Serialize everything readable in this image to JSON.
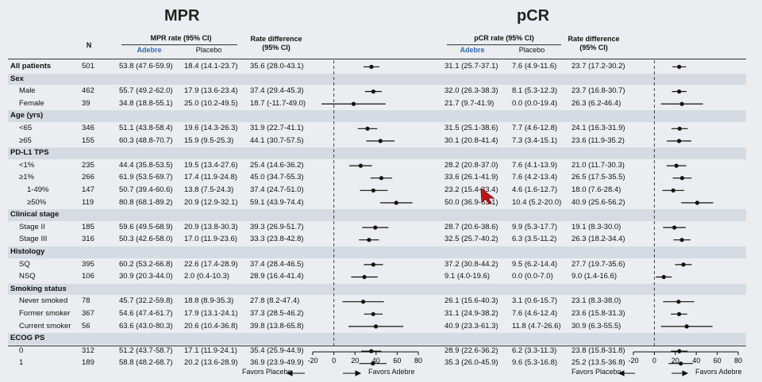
{
  "panels": {
    "left": {
      "title": "MPR",
      "rate_header": "MPR rate (95% CI)",
      "arm1": "Adebre",
      "arm2": "Placebo",
      "diff_header_1": "Rate difference",
      "diff_header_2": "(95% CI)"
    },
    "right": {
      "title": "pCR",
      "rate_header": "pCR rate (95% CI)",
      "arm1": "Adebre",
      "arm2": "Placebo",
      "diff_header_1": "Rate difference",
      "diff_header_2": "(95% CI)"
    }
  },
  "n_header": "N",
  "axis_favors_left": "Favors Placebo",
  "axis_favors_right": "Favors Adebre",
  "colors": {
    "accent": "#2f6db5",
    "band": "#d6dae2",
    "cursor": "#c0151c"
  },
  "rows": [
    {
      "label": "All patients",
      "kind": "main",
      "n": "501",
      "mpr_a": "53.8 (47.6-59.9)",
      "mpr_p": "18.4 (14.1-23.7)",
      "mpr_d": "35.6 (28.0-43.1)",
      "pcr_a": "31.1 (25.7-37.1)",
      "pcr_p": "7.6 (4.9-11.6)",
      "pcr_d": "23.7 (17.2-30.2)"
    },
    {
      "label": "Sex",
      "kind": "group"
    },
    {
      "label": "Male",
      "kind": "sub",
      "n": "462",
      "mpr_a": "55.7 (49.2-62.0)",
      "mpr_p": "17.9 (13.6-23.4)",
      "mpr_d": "37.4 (29.4-45.3)",
      "pcr_a": "32.0 (26.3-38.3)",
      "pcr_p": "8.1 (5.3-12.3)",
      "pcr_d": "23.7 (16.8-30.7)"
    },
    {
      "label": "Female",
      "kind": "sub",
      "n": "39",
      "mpr_a": "34.8 (18.8-55.1)",
      "mpr_p": "25.0 (10.2-49.5)",
      "mpr_d": "18.7 (-11.7-49.0)",
      "pcr_a": "21.7 (9.7-41.9)",
      "pcr_p": "0.0 (0.0-19.4)",
      "pcr_d": "26.3 (6.2-46.4)"
    },
    {
      "label": "Age (yrs)",
      "kind": "group"
    },
    {
      "label": "<65",
      "kind": "sub",
      "n": "346",
      "mpr_a": "51.1 (43.8-58.4)",
      "mpr_p": "19.6 (14.3-26.3)",
      "mpr_d": "31.9 (22.7-41.1)",
      "pcr_a": "31.5 (25.1-38.6)",
      "pcr_p": "7.7 (4.6-12.8)",
      "pcr_d": "24.1 (16.3-31.9)"
    },
    {
      "label": "≥65",
      "kind": "sub",
      "n": "155",
      "mpr_a": "60.3 (48.8-70.7)",
      "mpr_p": "15.9 (9.5-25.3)",
      "mpr_d": "44.1 (30.7-57.5)",
      "pcr_a": "30.1 (20.8-41.4)",
      "pcr_p": "7.3 (3.4-15.1)",
      "pcr_d": "23.6 (11.9-35.2)"
    },
    {
      "label": "PD-L1 TPS",
      "kind": "group"
    },
    {
      "label": "<1%",
      "kind": "sub",
      "n": "235",
      "mpr_a": "44.4 (35.8-53.5)",
      "mpr_p": "19.5 (13.4-27.6)",
      "mpr_d": "25.4 (14.6-36.2)",
      "pcr_a": "28.2 (20.8-37.0)",
      "pcr_p": "7.6 (4.1-13.9)",
      "pcr_d": "21.0 (11.7-30.3)"
    },
    {
      "label": "≥1%",
      "kind": "sub",
      "n": "266",
      "mpr_a": "61.9 (53.5-69.7)",
      "mpr_p": "17.4 (11.9-24.8)",
      "mpr_d": "45.0 (34.7-55.3)",
      "pcr_a": "33.6 (26.1-41.9)",
      "pcr_p": "7.6 (4.2-13.4)",
      "pcr_d": "26.5 (17.5-35.5)"
    },
    {
      "label": "1-49%",
      "kind": "sub2",
      "n": "147",
      "mpr_a": "50.7 (39.4-60.6)",
      "mpr_p": "13.8 (7.5-24.3)",
      "mpr_d": "37.4 (24.7-51.0)",
      "pcr_a": "23.2 (15.4-33.4)",
      "pcr_p": "4.6 (1.6-12.7)",
      "pcr_d": "18.0 (7.6-28.4)"
    },
    {
      "label": "≥50%",
      "kind": "sub2",
      "n": "119",
      "mpr_a": "80.8 (68.1-89.2)",
      "mpr_p": "20.9 (12.9-32.1)",
      "mpr_d": "59.1 (43.9-74.4)",
      "pcr_a": "50.0 (36.9-63.1)",
      "pcr_p": "10.4 (5.2-20.0)",
      "pcr_d": "40.9 (25.6-56.2)"
    },
    {
      "label": "Clinical stage",
      "kind": "group"
    },
    {
      "label": "Stage II",
      "kind": "sub",
      "n": "185",
      "mpr_a": "59.6 (49.5-68.9)",
      "mpr_p": "20.9 (13.8-30.3)",
      "mpr_d": "39.3 (26.9-51.7)",
      "pcr_a": "28.7 (20.6-38.6)",
      "pcr_p": "9.9 (5.3-17.7)",
      "pcr_d": "19.1 (8.3-30.0)"
    },
    {
      "label": "Stage III",
      "kind": "sub",
      "n": "316",
      "mpr_a": "50.3 (42.6-58.0)",
      "mpr_p": "17.0 (11.9-23.6)",
      "mpr_d": "33.3 (23.8-42.8)",
      "pcr_a": "32.5 (25.7-40.2)",
      "pcr_p": "6.3 (3.5-11.2)",
      "pcr_d": "26.3 (18.2-34.4)"
    },
    {
      "label": "Histology",
      "kind": "group"
    },
    {
      "label": "SQ",
      "kind": "sub",
      "n": "395",
      "mpr_a": "60.2 (53.2-66.8)",
      "mpr_p": "22.6 (17.4-28.9)",
      "mpr_d": "37.4 (28.4-46.5)",
      "pcr_a": "37.2 (30.8-44.2)",
      "pcr_p": "9.5 (6.2-14.4)",
      "pcr_d": "27.7 (19.7-35.6)"
    },
    {
      "label": "NSQ",
      "kind": "sub",
      "n": "106",
      "mpr_a": "30.9 (20.3-44.0)",
      "mpr_p": "2.0 (0.4-10.3)",
      "mpr_d": "28.9 (16.4-41.4)",
      "pcr_a": "9.1 (4.0-19.6)",
      "pcr_p": "0.0 (0.0-7.0)",
      "pcr_d": "9.0 (1.4-16.6)"
    },
    {
      "label": "Smoking status",
      "kind": "group"
    },
    {
      "label": "Never smoked",
      "kind": "sub",
      "n": "78",
      "mpr_a": "45.7 (32.2-59.8)",
      "mpr_p": "18.8 (8.9-35.3)",
      "mpr_d": "27.8 (8.2-47.4)",
      "pcr_a": "26.1 (15.6-40.3)",
      "pcr_p": "3.1 (0.6-15.7)",
      "pcr_d": "23.1 (8.3-38.0)"
    },
    {
      "label": "Former smoker",
      "kind": "sub",
      "n": "367",
      "mpr_a": "54.6 (47.4-61.7)",
      "mpr_p": "17.9 (13.1-24.1)",
      "mpr_d": "37.3 (28.5-46.2)",
      "pcr_a": "31.1 (24.9-38.2)",
      "pcr_p": "7.6 (4.6-12.4)",
      "pcr_d": "23.6 (15.8-31.3)"
    },
    {
      "label": "Current smoker",
      "kind": "sub",
      "n": "56",
      "mpr_a": "63.6 (43.0-80.3)",
      "mpr_p": "20.6 (10.4-36.8)",
      "mpr_d": "39.8 (13.8-65.8)",
      "pcr_a": "40.9 (23.3-61.3)",
      "pcr_p": "11.8 (4.7-26.6)",
      "pcr_d": "30.9 (6.3-55.5)"
    },
    {
      "label": "ECOG PS",
      "kind": "group"
    },
    {
      "label": "0",
      "kind": "sub",
      "n": "312",
      "mpr_a": "51.2 (43.7-58.7)",
      "mpr_p": "17.1 (11.9-24.1)",
      "mpr_d": "35.4 (25.9-44.9)",
      "pcr_a": "28.9 (22.6-36.2)",
      "pcr_p": "6.2 (3.3-11.3)",
      "pcr_d": "23.8 (15.8-31.8)"
    },
    {
      "label": "1",
      "kind": "sub",
      "n": "189",
      "mpr_a": "58.8 (48.2-68.7)",
      "mpr_p": "20.2 (13.6-28.9)",
      "mpr_d": "36.9 (23.9-49.9)",
      "pcr_a": "35.3 (26.0-45.9)",
      "pcr_p": "9.6 (5.3-16.8)",
      "pcr_d": "25.2 (13.5-36.8)"
    }
  ],
  "chart_data": [
    {
      "type": "forest",
      "title": "MPR",
      "xlim": [
        -20,
        80
      ],
      "xticks": [
        "-20",
        "0",
        "20",
        "40",
        "60",
        "80"
      ],
      "reference_line": 0,
      "categories": [
        "All patients",
        "Male",
        "Female",
        "<65",
        "≥65",
        "<1%",
        "≥1%",
        "1-49%",
        "≥50%",
        "Stage II",
        "Stage III",
        "SQ",
        "NSQ",
        "Never smoked",
        "Former smoker",
        "Current smoker",
        "0",
        "1"
      ],
      "estimate": [
        35.6,
        37.4,
        18.7,
        31.9,
        44.1,
        25.4,
        45.0,
        37.4,
        59.1,
        39.3,
        33.3,
        37.4,
        28.9,
        27.8,
        37.3,
        39.8,
        35.4,
        36.9
      ],
      "ci_low": [
        28.0,
        29.4,
        -11.7,
        22.7,
        30.7,
        14.6,
        34.7,
        24.7,
        43.9,
        26.9,
        23.8,
        28.4,
        16.4,
        8.2,
        28.5,
        13.8,
        25.9,
        23.9
      ],
      "ci_high": [
        43.1,
        45.3,
        49.0,
        41.1,
        57.5,
        36.2,
        55.3,
        51.0,
        74.4,
        51.7,
        42.8,
        46.5,
        41.4,
        47.4,
        46.2,
        65.8,
        44.9,
        49.9
      ]
    },
    {
      "type": "forest",
      "title": "pCR",
      "xlim": [
        -20,
        80
      ],
      "xticks": [
        "-20",
        "0",
        "20",
        "40",
        "60",
        "80"
      ],
      "reference_line": 0,
      "categories": [
        "All patients",
        "Male",
        "Female",
        "<65",
        "≥65",
        "<1%",
        "≥1%",
        "1-49%",
        "≥50%",
        "Stage II",
        "Stage III",
        "SQ",
        "NSQ",
        "Never smoked",
        "Former smoker",
        "Current smoker",
        "0",
        "1"
      ],
      "estimate": [
        23.7,
        23.7,
        26.3,
        24.1,
        23.6,
        21.0,
        26.5,
        18.0,
        40.9,
        19.1,
        26.3,
        27.7,
        9.0,
        23.1,
        23.6,
        30.9,
        23.8,
        25.2
      ],
      "ci_low": [
        17.2,
        16.8,
        6.2,
        16.3,
        11.9,
        11.7,
        17.5,
        7.6,
        25.6,
        8.3,
        18.2,
        19.7,
        1.4,
        8.3,
        15.8,
        6.3,
        15.8,
        13.5
      ],
      "ci_high": [
        30.2,
        30.7,
        46.4,
        31.9,
        35.2,
        30.3,
        35.5,
        28.4,
        56.2,
        30.0,
        34.4,
        35.6,
        16.6,
        38.0,
        31.3,
        55.5,
        31.8,
        36.8
      ]
    }
  ]
}
